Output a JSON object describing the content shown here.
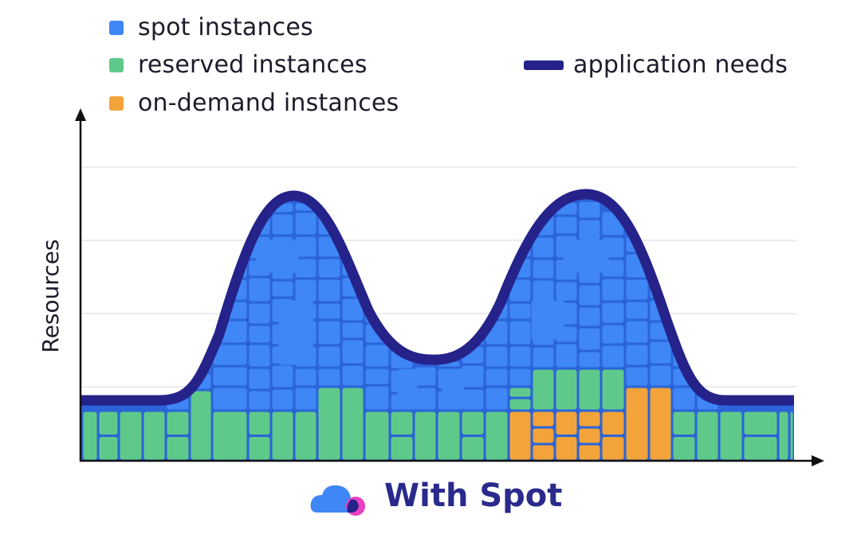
{
  "legend": {
    "spot": "spot instances",
    "reserved": "reserved instances",
    "ondemand": "on-demand instances",
    "application": "application needs"
  },
  "axis": {
    "ylabel": "Resources"
  },
  "footer": {
    "title": "With Spot"
  },
  "colors": {
    "spot": "#3f86f6",
    "reserved": "#5ec98a",
    "ondemand": "#f2a33a",
    "application": "#25228a",
    "fill": "#2b64d8",
    "axis": "#111111",
    "grid": "#e6e6ea",
    "logo_blue": "#3f86f6",
    "logo_pink": "#e93fc0"
  },
  "icons": [
    "cloud-logo-icon"
  ]
}
